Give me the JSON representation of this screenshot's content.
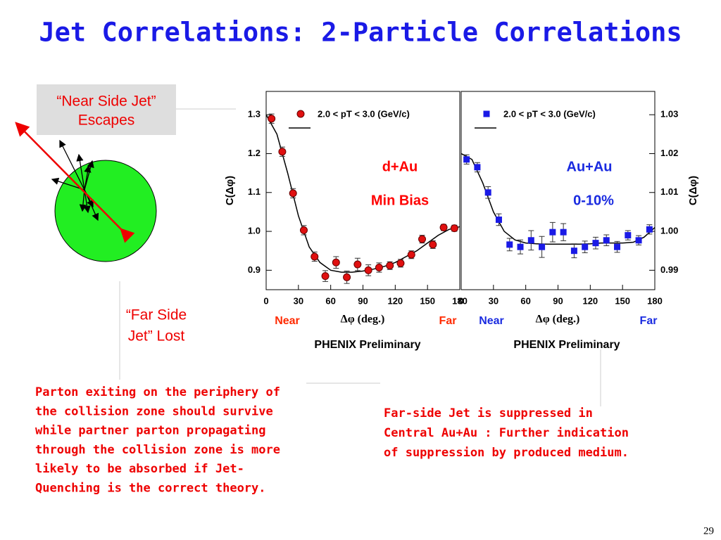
{
  "title": "Jet Correlations: 2-Particle Correlations",
  "diagram": {
    "near_label": [
      "“Near Side Jet”",
      "Escapes"
    ],
    "far_label": [
      "“Far Side",
      "Jet” Lost"
    ]
  },
  "chart_data": [
    {
      "type": "scatter",
      "xlim": [
        0,
        180
      ],
      "xticks": [
        0,
        30,
        60,
        90,
        120,
        150,
        180
      ],
      "ylim": [
        0.85,
        1.36
      ],
      "yticks": [
        0.9,
        {
          "value": 1,
          "label": "1.0"
        },
        1.1,
        1.2,
        1.3
      ],
      "yaxis_side": "left",
      "ylabel": "C(Δφ)",
      "xlabel": "Δφ (deg.)",
      "near": "Near",
      "far": "Far",
      "label_color": "#ff2a00",
      "annotations": [
        "d+Au",
        "Min Bias"
      ],
      "annotation_color": "#ff0000",
      "footer": "PHENIX Preliminary",
      "series": [
        {
          "name": "2.0 < pT < 3.0 (GeV/c)",
          "color": "#e01010",
          "marker": "circle",
          "x": [
            5,
            15,
            25,
            35,
            45,
            55,
            65,
            75,
            85,
            95,
            105,
            115,
            125,
            135,
            145,
            155,
            165,
            175
          ],
          "values": [
            1.29,
            1.205,
            1.098,
            1.003,
            0.935,
            0.885,
            0.92,
            0.882,
            0.915,
            0.9,
            0.907,
            0.912,
            0.918,
            0.94,
            0.98,
            0.966,
            1.01,
            1.008
          ],
          "errors": [
            0.012,
            0.012,
            0.012,
            0.012,
            0.012,
            0.014,
            0.015,
            0.016,
            0.016,
            0.014,
            0.012,
            0.01,
            0.01,
            0.01,
            0.01,
            0.01,
            0.008,
            0.008
          ]
        }
      ],
      "fit": {
        "x": [
          0,
          10,
          20,
          30,
          40,
          50,
          60,
          70,
          80,
          90,
          100,
          110,
          120,
          130,
          140,
          150,
          160,
          170,
          180
        ],
        "values": [
          1.3,
          1.25,
          1.15,
          1.04,
          0.96,
          0.92,
          0.9,
          0.895,
          0.895,
          0.898,
          0.903,
          0.91,
          0.92,
          0.935,
          0.95,
          0.97,
          0.99,
          1.005,
          1.012
        ]
      }
    },
    {
      "type": "scatter",
      "xlim": [
        0,
        180
      ],
      "xticks": [
        0,
        30,
        60,
        90,
        120,
        150,
        180
      ],
      "ylim": [
        0.985,
        1.036
      ],
      "yticks": [
        0.99,
        {
          "value": 1,
          "label": "1.00"
        },
        1.01,
        1.02,
        1.03
      ],
      "yaxis_side": "right",
      "ylabel": "C(Δφ)",
      "xlabel": "Δφ (deg.)",
      "near": "Near",
      "far": "Far",
      "label_color": "#1a2be0",
      "annotations": [
        "Au+Au",
        "0-10%"
      ],
      "annotation_color": "#1a2be0",
      "footer": "PHENIX Preliminary",
      "series": [
        {
          "name": "2.0 < pT < 3.0 (GeV/c)",
          "color": "#1a1ae6",
          "marker": "square",
          "x": [
            5,
            15,
            25,
            35,
            45,
            55,
            65,
            75,
            85,
            95,
            105,
            115,
            125,
            135,
            145,
            155,
            165,
            175
          ],
          "values": [
            1.0185,
            1.0165,
            1.01,
            1.003,
            0.9966,
            0.996,
            0.9977,
            0.996,
            0.9998,
            0.9998,
            0.995,
            0.996,
            0.997,
            0.9977,
            0.996,
            0.999,
            0.9977,
            1.0005
          ],
          "errors": [
            0.0012,
            0.0012,
            0.0015,
            0.0015,
            0.0016,
            0.0018,
            0.0025,
            0.0027,
            0.0025,
            0.0022,
            0.0018,
            0.0015,
            0.0015,
            0.0014,
            0.0014,
            0.0012,
            0.0012,
            0.0012
          ]
        }
      ],
      "fit": {
        "x": [
          0,
          10,
          20,
          30,
          40,
          50,
          60,
          70,
          80,
          90,
          100,
          110,
          120,
          130,
          140,
          150,
          160,
          170,
          180
        ],
        "values": [
          1.02,
          1.0185,
          1.0125,
          1.005,
          1.0,
          0.9978,
          0.997,
          0.9968,
          0.9967,
          0.9967,
          0.9967,
          0.9967,
          0.9968,
          0.997,
          0.997,
          0.997,
          0.9972,
          0.9985,
          1.001
        ]
      }
    }
  ],
  "notes": {
    "left": [
      "Parton exiting on the periphery of",
      "the collision zone should survive",
      "while partner parton propagating",
      "through the collision zone is more",
      "likely to be absorbed if Jet-",
      "Quenching is the correct theory."
    ],
    "right": [
      "Far-side Jet is suppressed in",
      "Central Au+Au : Further indication",
      "of suppression by produced medium."
    ]
  },
  "page_number": "29"
}
